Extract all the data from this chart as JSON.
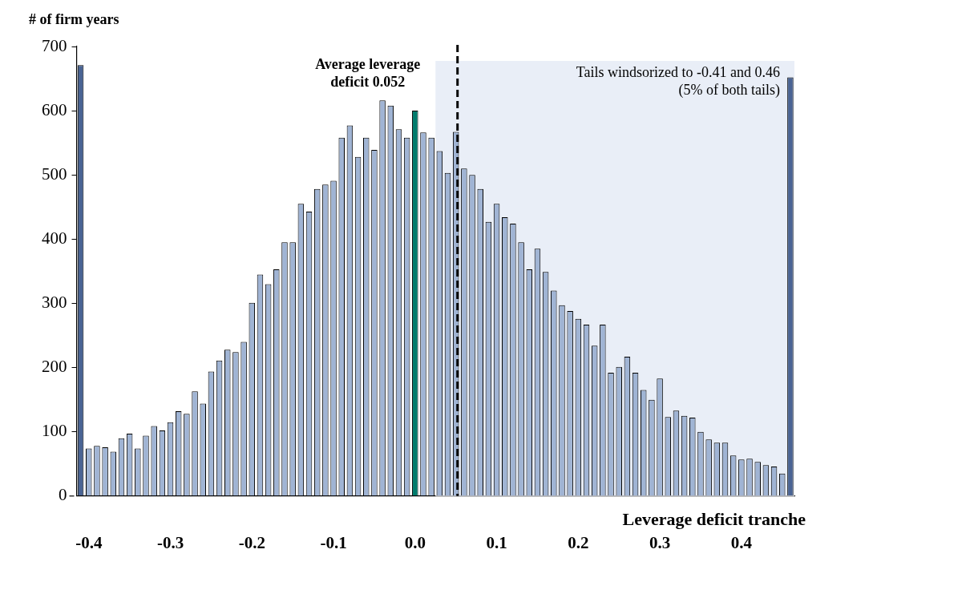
{
  "chart_data": {
    "type": "histogram",
    "ylabel": "# of firm years",
    "xlabel": "Leverage deficit tranche",
    "bins": [
      -0.415,
      -0.405,
      -0.395,
      -0.385,
      -0.375,
      -0.365,
      -0.355,
      -0.345,
      -0.335,
      -0.325,
      -0.315,
      -0.305,
      -0.295,
      -0.285,
      -0.275,
      -0.265,
      -0.255,
      -0.245,
      -0.235,
      -0.225,
      -0.215,
      -0.205,
      -0.195,
      -0.185,
      -0.175,
      -0.165,
      -0.155,
      -0.145,
      -0.135,
      -0.125,
      -0.115,
      -0.105,
      -0.095,
      -0.085,
      -0.075,
      -0.065,
      -0.055,
      -0.045,
      -0.035,
      -0.025,
      -0.015,
      -0.005,
      0.005,
      0.015,
      0.025,
      0.035,
      0.045,
      0.055,
      0.065,
      0.075,
      0.085,
      0.095,
      0.105,
      0.115,
      0.125,
      0.135,
      0.145,
      0.155,
      0.165,
      0.175,
      0.185,
      0.195,
      0.205,
      0.215,
      0.225,
      0.235,
      0.245,
      0.255,
      0.265,
      0.275,
      0.285,
      0.295,
      0.305,
      0.315,
      0.325,
      0.335,
      0.345,
      0.355,
      0.365,
      0.375,
      0.385,
      0.395,
      0.405,
      0.415,
      0.425,
      0.435,
      0.445,
      0.455,
      0.465
    ],
    "values": [
      671,
      74,
      78,
      76,
      69,
      90,
      97,
      74,
      94,
      109,
      102,
      115,
      132,
      128,
      163,
      144,
      194,
      211,
      228,
      224,
      240,
      301,
      345,
      330,
      353,
      395,
      395,
      455,
      443,
      478,
      485,
      491,
      558,
      577,
      528,
      558,
      539,
      616,
      608,
      571,
      558,
      600,
      566,
      558,
      537,
      503,
      567,
      510,
      500,
      478,
      427,
      455,
      434,
      424,
      395,
      353,
      385,
      349,
      320,
      297,
      288,
      276,
      267,
      234,
      267,
      192,
      201,
      217,
      192,
      165,
      150,
      183,
      123,
      133,
      125,
      122,
      100,
      88,
      83,
      83,
      63,
      57,
      58,
      53,
      48,
      46,
      35,
      652
    ],
    "colors": [
      "#4a6494",
      "#a0b4d4",
      "#a0b4d4",
      "#a0b4d4",
      "#a0b4d4",
      "#a0b4d4",
      "#a0b4d4",
      "#a0b4d4",
      "#a0b4d4",
      "#a0b4d4",
      "#a0b4d4",
      "#a0b4d4",
      "#a0b4d4",
      "#a0b4d4",
      "#a0b4d4",
      "#a0b4d4",
      "#a0b4d4",
      "#a0b4d4",
      "#a0b4d4",
      "#a0b4d4",
      "#a0b4d4",
      "#a0b4d4",
      "#a0b4d4",
      "#a0b4d4",
      "#a0b4d4",
      "#a0b4d4",
      "#a0b4d4",
      "#a0b4d4",
      "#a0b4d4",
      "#a0b4d4",
      "#a0b4d4",
      "#a0b4d4",
      "#a0b4d4",
      "#a0b4d4",
      "#a0b4d4",
      "#a0b4d4",
      "#a0b4d4",
      "#a0b4d4",
      "#a0b4d4",
      "#a0b4d4",
      "#a0b4d4",
      "#007b6c",
      "#a0b4d4",
      "#a0b4d4",
      "#a0b4d4",
      "#a0b4d4",
      "#a0b4d4",
      "#a0b4d4",
      "#a0b4d4",
      "#a0b4d4",
      "#a0b4d4",
      "#a0b4d4",
      "#a0b4d4",
      "#a0b4d4",
      "#a0b4d4",
      "#a0b4d4",
      "#a0b4d4",
      "#a0b4d4",
      "#a0b4d4",
      "#a0b4d4",
      "#a0b4d4",
      "#a0b4d4",
      "#a0b4d4",
      "#a0b4d4",
      "#a0b4d4",
      "#a0b4d4",
      "#a0b4d4",
      "#a0b4d4",
      "#a0b4d4",
      "#a0b4d4",
      "#a0b4d4",
      "#a0b4d4",
      "#a0b4d4",
      "#a0b4d4",
      "#a0b4d4",
      "#a0b4d4",
      "#a0b4d4",
      "#a0b4d4",
      "#a0b4d4",
      "#a0b4d4",
      "#a0b4d4",
      "#a0b4d4",
      "#a0b4d4",
      "#a0b4d4",
      "#a0b4d4",
      "#a0b4d4",
      "#a0b4d4",
      "#4a6494"
    ],
    "xlim": [
      -0.415,
      0.465
    ],
    "xticks": [
      {
        "value": -0.4,
        "label": "-0.4"
      },
      {
        "value": -0.3,
        "label": "-0.3"
      },
      {
        "value": -0.2,
        "label": "-0.2"
      },
      {
        "value": -0.1,
        "label": "-0.1"
      },
      {
        "value": 0,
        "label": "0.0"
      },
      {
        "value": 0.1,
        "label": "0.1"
      },
      {
        "value": 0.2,
        "label": "0.2"
      },
      {
        "value": 0.3,
        "label": "0.3"
      },
      {
        "value": 0.4,
        "label": "0.4"
      }
    ],
    "ylim": [
      0,
      700
    ],
    "yticks": [
      0,
      100,
      200,
      300,
      400,
      500,
      600,
      700
    ],
    "grid": false,
    "legend": false,
    "ref_lines": [
      {
        "axis": "x",
        "value": 0.052,
        "label": "Average leverage deficit 0.052",
        "color": "#000000",
        "line_style": "dashed"
      }
    ],
    "bands": [
      {
        "axis": "x",
        "from": 0.025,
        "to": 0.465,
        "color": "#e9eef7"
      }
    ],
    "annotations": [
      "Tails windsorized to -0.41 and 0.46 (5% of both tails)"
    ]
  }
}
